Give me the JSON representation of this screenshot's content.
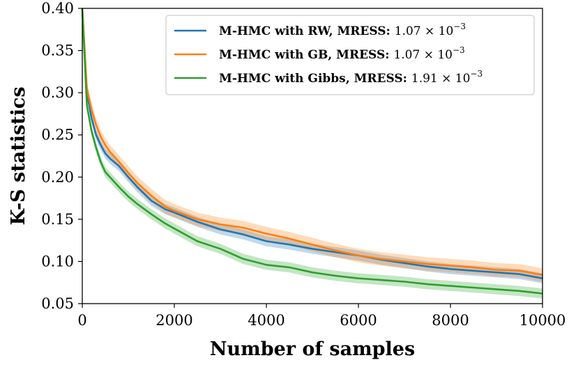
{
  "chart_data": {
    "type": "line",
    "xlabel": "Number of samples",
    "ylabel": "K-S statistics",
    "xlim": [
      0,
      10000
    ],
    "ylim": [
      0.05,
      0.4
    ],
    "xticks": [
      0,
      2000,
      4000,
      6000,
      8000,
      10000
    ],
    "xtick_labels": [
      "0",
      "2000",
      "4000",
      "6000",
      "8000",
      "10000"
    ],
    "yticks": [
      0.05,
      0.1,
      0.15,
      0.2,
      0.25,
      0.3,
      0.35,
      0.4
    ],
    "ytick_labels": [
      "0.05",
      "0.10",
      "0.15",
      "0.20",
      "0.25",
      "0.30",
      "0.35",
      "0.40"
    ],
    "grid": false,
    "legend_position": "top-right",
    "x": [
      0,
      100,
      200,
      300,
      400,
      500,
      600,
      800,
      1000,
      1200,
      1500,
      1800,
      2000,
      2500,
      3000,
      3500,
      4000,
      4500,
      5000,
      5500,
      6000,
      6500,
      7000,
      7500,
      8000,
      8500,
      9000,
      9500,
      10000
    ],
    "series": [
      {
        "name": "M-HMC with RW",
        "legend_bold": "M-HMC with RW, MRESS:",
        "legend_value": "1.07 × 10",
        "legend_exp": "−3",
        "color": "#1f77b4",
        "values": [
          0.4,
          0.3,
          0.27,
          0.25,
          0.238,
          0.228,
          0.222,
          0.213,
          0.2,
          0.188,
          0.172,
          0.162,
          0.158,
          0.147,
          0.138,
          0.132,
          0.124,
          0.12,
          0.115,
          0.111,
          0.107,
          0.102,
          0.098,
          0.094,
          0.091,
          0.089,
          0.087,
          0.085,
          0.08
        ],
        "band": 0.006
      },
      {
        "name": "M-HMC with GB",
        "legend_bold": "M-HMC with GB, MRESS:",
        "legend_value": "1.07 × 10",
        "legend_exp": "−3",
        "color": "#ff7f0e",
        "values": [
          0.4,
          0.305,
          0.28,
          0.262,
          0.248,
          0.238,
          0.23,
          0.218,
          0.205,
          0.193,
          0.178,
          0.165,
          0.16,
          0.15,
          0.144,
          0.14,
          0.133,
          0.127,
          0.12,
          0.113,
          0.107,
          0.103,
          0.1,
          0.097,
          0.095,
          0.093,
          0.09,
          0.089,
          0.084
        ],
        "band": 0.008
      },
      {
        "name": "M-HMC with Gibbs",
        "legend_bold": "M-HMC with Gibbs, MRESS:",
        "legend_value": "1.91 × 10",
        "legend_exp": "−3",
        "color": "#2ca02c",
        "values": [
          0.4,
          0.285,
          0.255,
          0.235,
          0.218,
          0.206,
          0.2,
          0.188,
          0.177,
          0.168,
          0.156,
          0.145,
          0.139,
          0.124,
          0.115,
          0.103,
          0.096,
          0.093,
          0.087,
          0.083,
          0.08,
          0.078,
          0.076,
          0.073,
          0.071,
          0.069,
          0.067,
          0.065,
          0.062
        ],
        "band": 0.006
      }
    ]
  }
}
